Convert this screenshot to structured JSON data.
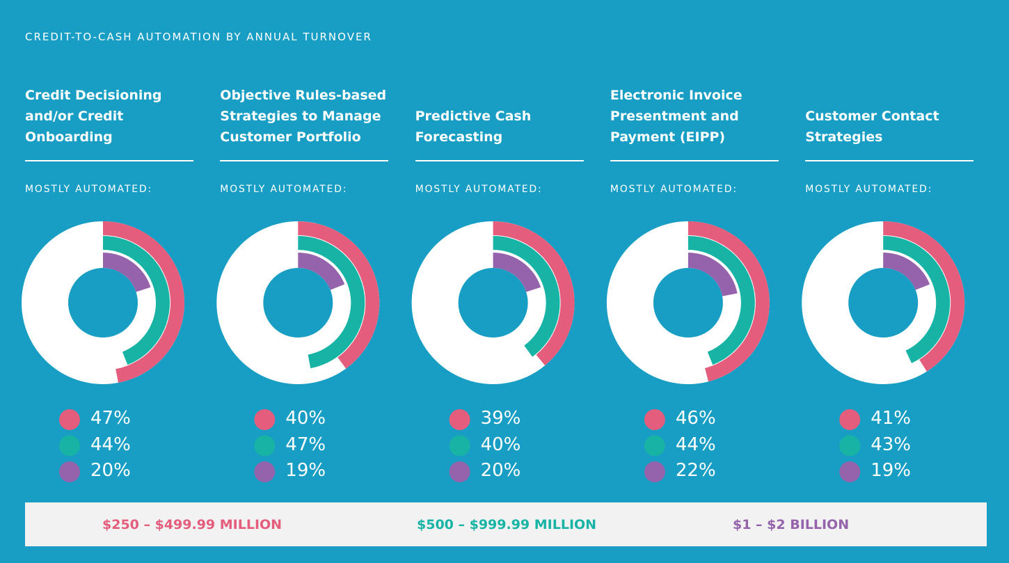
{
  "title": "CREDIT-TO-CASH AUTOMATION BY ANNUAL TURNOVER",
  "legend": [
    {
      "name": "$250 – $499.99 MILLION",
      "color": "#e45d7c"
    },
    {
      "name": "$500 – $999.99 MILLION",
      "color": "#17b3a4"
    },
    {
      "name": "$1 – $2 BILLION",
      "color": "#9563ab"
    }
  ],
  "chart_data": [
    {
      "type": "radial",
      "title": "Credit Decisioning and/or Credit Onboarding",
      "subtitle": "MOSTLY AUTOMATED:",
      "values": [
        47,
        44,
        20
      ],
      "value_labels": [
        "47%",
        "44%",
        "20%"
      ]
    },
    {
      "type": "radial",
      "title": "Objective Rules-based Strategies to Manage Customer Portfolio",
      "subtitle": "MOSTLY AUTOMATED:",
      "values": [
        40,
        47,
        19
      ],
      "value_labels": [
        "40%",
        "47%",
        "19%"
      ]
    },
    {
      "type": "radial",
      "title": "Predictive Cash Forecasting",
      "subtitle": "MOSTLY AUTOMATED:",
      "values": [
        39,
        40,
        20
      ],
      "value_labels": [
        "39%",
        "40%",
        "20%"
      ]
    },
    {
      "type": "radial",
      "title": "Electronic Invoice Presentment and Payment (EIPP)",
      "subtitle": "MOSTLY AUTOMATED:",
      "values": [
        46,
        44,
        22
      ],
      "value_labels": [
        "46%",
        "44%",
        "22%"
      ]
    },
    {
      "type": "radial",
      "title": "Customer Contact Strategies",
      "subtitle": "MOSTLY AUTOMATED:",
      "values": [
        41,
        43,
        19
      ],
      "value_labels": [
        "41%",
        "43%",
        "19%"
      ]
    }
  ]
}
